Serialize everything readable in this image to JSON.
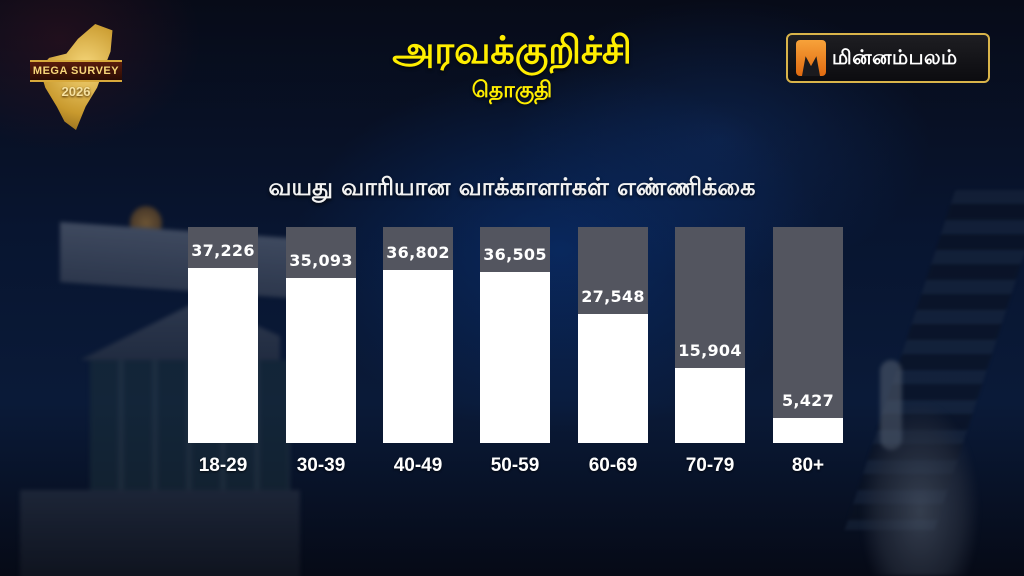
{
  "header": {
    "constituency": "அரவக்குறிச்சி",
    "subtitle": "தொகுதி"
  },
  "logos": {
    "survey": {
      "band_text": "MEGA SURVEY",
      "year": "2026"
    },
    "brand": {
      "name": "மின்னம்பலம்"
    }
  },
  "colors": {
    "title": "#ffee00",
    "bar_track": "#53555f",
    "bar_fill": "#ffffff",
    "background": "#081530"
  },
  "chart_data": {
    "type": "bar",
    "title": "வயது வாரியான வாக்காளர்கள் எண்ணிக்கை",
    "xlabel": "",
    "ylabel": "",
    "categories": [
      "18-29",
      "30-39",
      "40-49",
      "50-59",
      "60-69",
      "70-79",
      "80+"
    ],
    "values": [
      37226,
      35093,
      36802,
      36505,
      27548,
      15904,
      5427
    ],
    "value_labels": [
      "37,226",
      "35,093",
      "36,802",
      "36,505",
      "27,548",
      "15,904",
      "5,427"
    ],
    "ylim": [
      0,
      46000
    ],
    "grid": false,
    "legend": null
  }
}
